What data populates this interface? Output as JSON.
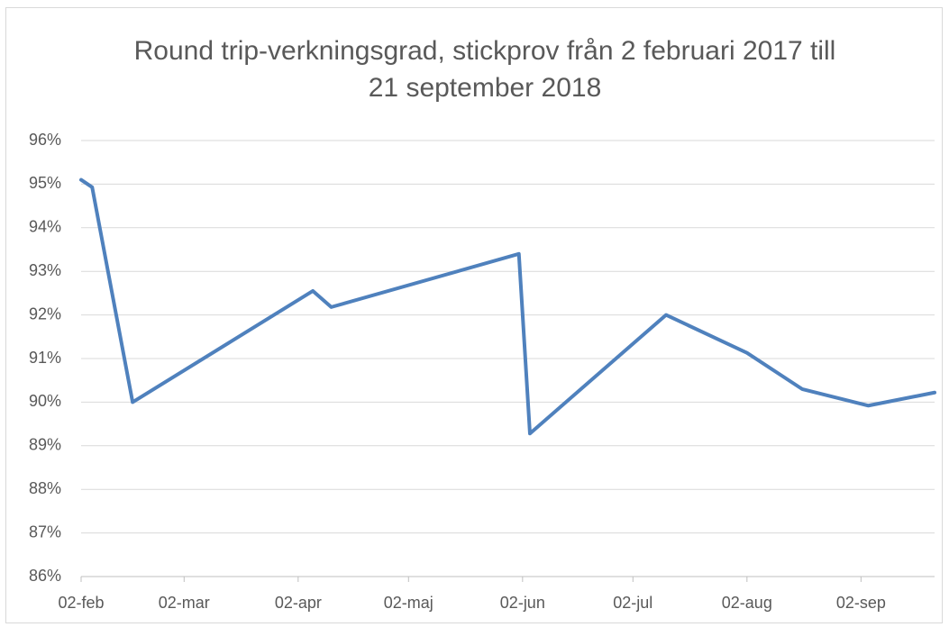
{
  "chart_data": {
    "type": "line",
    "title": "Round trip-verkningsgrad, stickprov från 2 februari 2017 till 21 september 2018",
    "x": [
      33,
      36,
      47,
      96,
      101,
      152,
      155,
      192,
      214,
      229,
      247,
      265
    ],
    "series": [
      {
        "name": "Round trip-verkningsgrad",
        "color": "#4f81bd",
        "values": [
          95.1,
          94.93,
          90.0,
          92.55,
          92.18,
          93.4,
          89.28,
          92.0,
          91.13,
          90.3,
          89.92,
          90.22
        ]
      }
    ],
    "xlim": [
      33,
      265
    ],
    "xticks": [
      {
        "value": 33,
        "label": "02-feb"
      },
      {
        "value": 61,
        "label": "02-mar"
      },
      {
        "value": 92,
        "label": "02-apr"
      },
      {
        "value": 122,
        "label": "02-maj"
      },
      {
        "value": 153,
        "label": "02-jun"
      },
      {
        "value": 183,
        "label": "02-jul"
      },
      {
        "value": 214,
        "label": "02-aug"
      },
      {
        "value": 245,
        "label": "02-sep"
      }
    ],
    "ylim": [
      86,
      96
    ],
    "yticks": [
      {
        "value": 86,
        "label": "86%"
      },
      {
        "value": 87,
        "label": "87%"
      },
      {
        "value": 88,
        "label": "88%"
      },
      {
        "value": 89,
        "label": "89%"
      },
      {
        "value": 90,
        "label": "90%"
      },
      {
        "value": 91,
        "label": "91%"
      },
      {
        "value": 92,
        "label": "92%"
      },
      {
        "value": 93,
        "label": "93%"
      },
      {
        "value": 94,
        "label": "94%"
      },
      {
        "value": 95,
        "label": "95%"
      },
      {
        "value": 96,
        "label": "96%"
      }
    ],
    "grid": true
  }
}
